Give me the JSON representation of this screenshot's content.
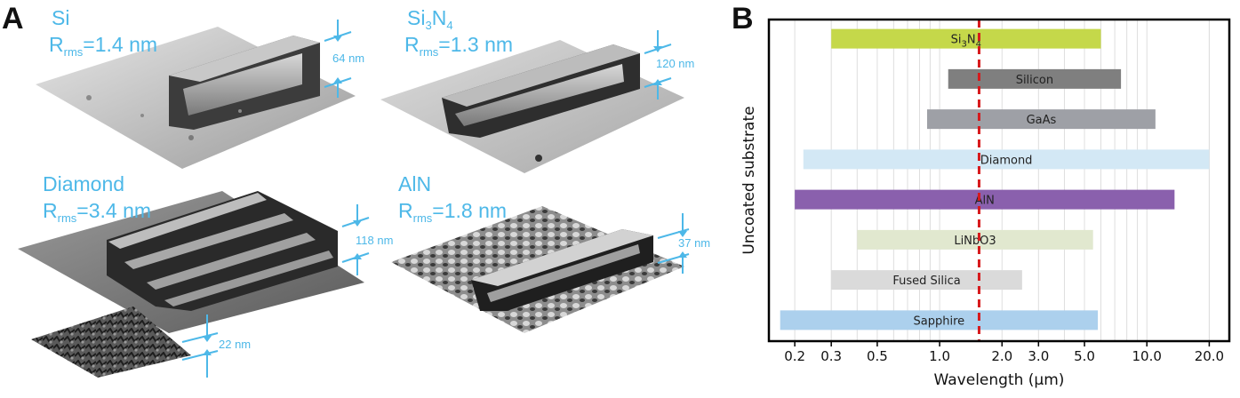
{
  "panel_a": {
    "letter": "A",
    "samples": [
      {
        "name": "Si",
        "rms": "1.4 nm",
        "height": "64 nm"
      },
      {
        "name": "Si3N4",
        "rms": "1.3 nm",
        "height": "120 nm"
      },
      {
        "name": "Diamond",
        "rms": "3.4 nm",
        "height": "118 nm"
      },
      {
        "name": "AlN",
        "rms": "1.8 nm",
        "height": "37 nm"
      }
    ],
    "inset_height": "22 nm",
    "rms_prefix": "R",
    "rms_sub": "rms"
  },
  "panel_b": {
    "letter": "B"
  },
  "colors": {
    "accent": "#4db8e8",
    "marker": "#d7191c"
  },
  "chart_data": {
    "type": "bar",
    "orientation": "horizontal",
    "xscale": "log",
    "xlabel": "Wavelength (μm)",
    "ylabel": "Uncoated substrate",
    "xlim": [
      0.15,
      25
    ],
    "xticks": [
      "0.2",
      "0.3",
      "0.5",
      "1.0",
      "2.0",
      "3.0",
      "5.0",
      "10.0",
      "20.0"
    ],
    "xtick_values": [
      0.2,
      0.3,
      0.5,
      1.0,
      2.0,
      3.0,
      5.0,
      10.0,
      20.0
    ],
    "grid": true,
    "vline": 1.55,
    "bars": [
      {
        "label": "Si3N4",
        "start": 0.3,
        "end": 6.0,
        "color": "#c5d84a"
      },
      {
        "label": "Silicon",
        "start": 1.1,
        "end": 7.5,
        "color": "#7f7f7f"
      },
      {
        "label": "GaAs",
        "start": 0.87,
        "end": 11.0,
        "color": "#9ea0a6"
      },
      {
        "label": "Diamond",
        "start": 0.22,
        "end": 20.0,
        "color": "#d3e8f5"
      },
      {
        "label": "AlN",
        "start": 0.2,
        "end": 13.6,
        "color": "#8a60ad"
      },
      {
        "label": "LiNbO3",
        "start": 0.4,
        "end": 5.5,
        "color": "#e1e8cf"
      },
      {
        "label": "Fused Silica",
        "start": 0.3,
        "end": 2.5,
        "color": "#dadada"
      },
      {
        "label": "Sapphire",
        "start": 0.17,
        "end": 5.8,
        "color": "#acd0ed"
      }
    ]
  }
}
